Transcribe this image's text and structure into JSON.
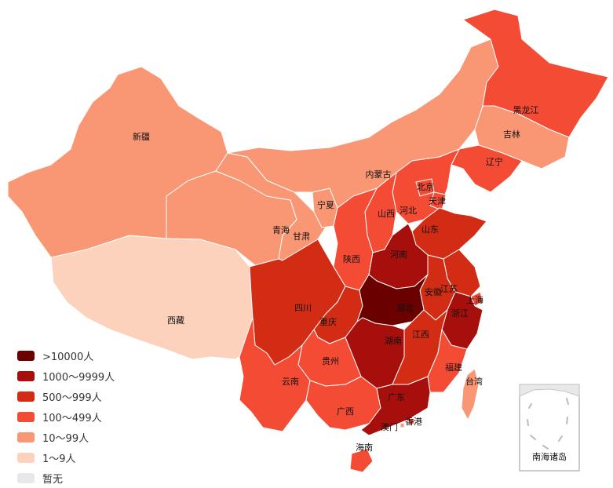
{
  "colors": {
    "c1": "#6b0000",
    "c2": "#a60f0c",
    "c3": "#d22d14",
    "c4": "#f44b35",
    "c5": "#f99775",
    "c6": "#fdd2bd",
    "c7": "#e8e8e8",
    "border": "#ffffff",
    "label": "#111111"
  },
  "legend": [
    {
      "label": ">10000人",
      "color": "#6b0000"
    },
    {
      "label": "1000～9999人",
      "color": "#a60f0c"
    },
    {
      "label": "500～999人",
      "color": "#d22d14"
    },
    {
      "label": "100～499人",
      "color": "#f44b35"
    },
    {
      "label": "10～99人",
      "color": "#f99775"
    },
    {
      "label": "1～9人",
      "color": "#fdd2bd"
    },
    {
      "label": "暂无",
      "color": "#e8e8e8"
    }
  ],
  "regions": [
    {
      "name": "新疆",
      "range": "10～99人"
    },
    {
      "name": "西藏",
      "range": "1～9人"
    },
    {
      "name": "青海",
      "range": "10～99人"
    },
    {
      "name": "甘肃",
      "range": "10～99人"
    },
    {
      "name": "宁夏",
      "range": "10～99人"
    },
    {
      "name": "内蒙古",
      "range": "10～99人"
    },
    {
      "name": "黑龙江",
      "range": "100～499人"
    },
    {
      "name": "吉林",
      "range": "10～99人"
    },
    {
      "name": "辽宁",
      "range": "100～499人"
    },
    {
      "name": "北京",
      "range": "100～499人"
    },
    {
      "name": "天津",
      "range": "100～499人"
    },
    {
      "name": "河北",
      "range": "100～499人"
    },
    {
      "name": "山西",
      "range": "100～499人"
    },
    {
      "name": "山东",
      "range": "500～999人"
    },
    {
      "name": "陕西",
      "range": "100～499人"
    },
    {
      "name": "河南",
      "range": "1000～9999人"
    },
    {
      "name": "江苏",
      "range": "500～999人"
    },
    {
      "name": "安徽",
      "range": "500～999人"
    },
    {
      "name": "上海",
      "range": "100～499人"
    },
    {
      "name": "浙江",
      "range": "1000～9999人"
    },
    {
      "name": "四川",
      "range": "500～999人"
    },
    {
      "name": "重庆",
      "range": "500～999人"
    },
    {
      "name": "湖北",
      "range": ">10000人"
    },
    {
      "name": "湖南",
      "range": "1000～9999人"
    },
    {
      "name": "江西",
      "range": "500～999人"
    },
    {
      "name": "贵州",
      "range": "100～499人"
    },
    {
      "name": "云南",
      "range": "100～499人"
    },
    {
      "name": "福建",
      "range": "100～499人"
    },
    {
      "name": "台湾",
      "range": "10～99人"
    },
    {
      "name": "广东",
      "range": "1000～9999人"
    },
    {
      "name": "广西",
      "range": "100～499人"
    },
    {
      "name": "海南",
      "range": "100～499人"
    },
    {
      "name": "香港",
      "range": "100～499人"
    },
    {
      "name": "澳门",
      "range": "10～99人"
    }
  ],
  "inset_label": "南海诸岛"
}
